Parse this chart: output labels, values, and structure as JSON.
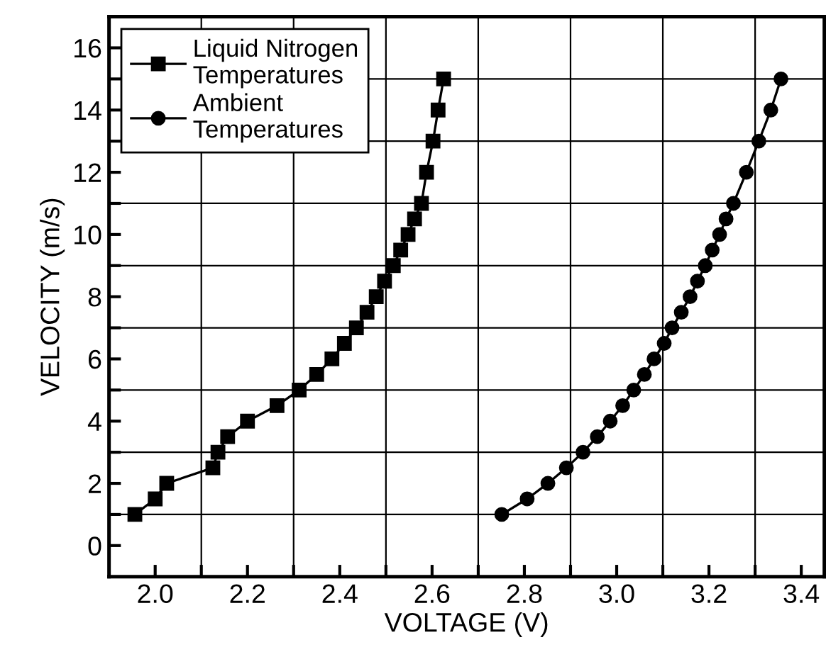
{
  "chart_data": {
    "type": "line",
    "xlabel": "VOLTAGE (V)",
    "ylabel": "VELOCITY (m/s)",
    "xlim": [
      1.9,
      3.45
    ],
    "ylim": [
      -1,
      17
    ],
    "xticks": [
      {
        "value": 2,
        "label": "2.0"
      },
      {
        "value": 2.1,
        "label": null
      },
      2.2,
      {
        "value": 2.3,
        "label": null
      },
      2.4,
      {
        "value": 2.5,
        "label": null
      },
      2.6,
      {
        "value": 2.7,
        "label": null
      },
      2.8,
      {
        "value": 2.9,
        "label": null
      },
      {
        "value": 3,
        "label": "3.0"
      },
      {
        "value": 3.1,
        "label": null
      },
      3.2,
      {
        "value": 3.3,
        "label": null
      },
      3.4
    ],
    "yticks": [
      0,
      {
        "value": 1,
        "label": null
      },
      2,
      {
        "value": 3,
        "label": null
      },
      4,
      {
        "value": 5,
        "label": null
      },
      6,
      {
        "value": 7,
        "label": null
      },
      8,
      {
        "value": 9,
        "label": null
      },
      10,
      {
        "value": 11,
        "label": null
      },
      12,
      {
        "value": 13,
        "label": null
      },
      14,
      {
        "value": 15,
        "label": null
      },
      16
    ],
    "grid": true,
    "legend": "top left",
    "line_style": "solid",
    "series": [
      {
        "name": "Liquid Nitrogen\nTemperatures",
        "color": "#000000",
        "marker": "square",
        "x": [
          1.956,
          2.0,
          2.025,
          2.125,
          2.136,
          2.157,
          2.2,
          2.264,
          2.312,
          2.35,
          2.383,
          2.41,
          2.436,
          2.459,
          2.479,
          2.497,
          2.516,
          2.532,
          2.548,
          2.562,
          2.577,
          2.588,
          2.602,
          2.613,
          2.625
        ],
        "values": [
          1,
          1.5,
          2,
          2.5,
          3,
          3.5,
          4,
          4.5,
          5,
          5.5,
          6,
          6.5,
          7,
          7.5,
          8,
          8.5,
          9,
          9.5,
          10,
          10.5,
          11,
          12,
          13,
          14,
          15
        ]
      },
      {
        "name": "Ambient\nTemperatures",
        "color": "#000000",
        "marker": "circle",
        "x": [
          2.751,
          2.806,
          2.851,
          2.891,
          2.927,
          2.958,
          2.986,
          3.013,
          3.037,
          3.06,
          3.081,
          3.103,
          3.12,
          3.14,
          3.159,
          3.175,
          3.192,
          3.207,
          3.223,
          3.237,
          3.253,
          3.281,
          3.308,
          3.334,
          3.356
        ],
        "values": [
          1,
          1.5,
          2,
          2.5,
          3,
          3.5,
          4,
          4.5,
          5,
          5.5,
          6,
          6.5,
          7,
          7.5,
          8,
          8.5,
          9,
          9.5,
          10,
          10.5,
          11,
          12,
          13,
          14,
          15
        ]
      }
    ]
  }
}
